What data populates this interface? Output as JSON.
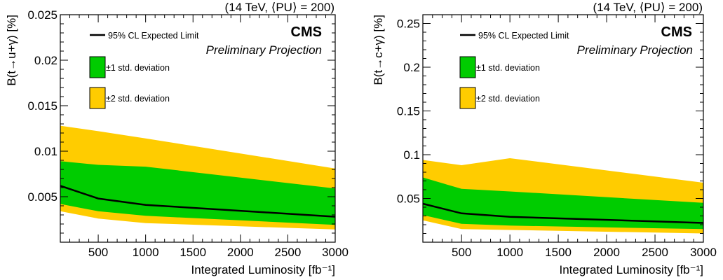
{
  "chart_data": [
    {
      "type": "area",
      "header": "(14 TeV, ⟨PU⟩ = 200)",
      "brand": "CMS",
      "subtitle": "Preliminary Projection",
      "xlabel": "Integrated Luminosity [fb⁻¹]",
      "ylabel": "B(t→u+γ) [%]",
      "xlim": [
        100,
        3000
      ],
      "ylim": [
        0,
        0.025
      ],
      "xticks": [
        500,
        1000,
        1500,
        2000,
        2500,
        3000
      ],
      "xtick_labels": [
        "500",
        "1000",
        "1500",
        "2000",
        "2500",
        "3000"
      ],
      "yticks": [
        0.005,
        0.01,
        0.015,
        0.02,
        0.025
      ],
      "ytick_labels": [
        "0.005",
        "0.01",
        "0.015",
        "0.02",
        "0.025"
      ],
      "x": [
        100,
        500,
        1000,
        3000
      ],
      "series": [
        {
          "name": "95% CL Expected Limit",
          "values": [
            0.0062,
            0.0048,
            0.0041,
            0.0028
          ]
        },
        {
          "name": "±1 std. deviation",
          "lower": [
            0.0042,
            0.0034,
            0.0029,
            0.0019
          ],
          "upper": [
            0.0089,
            0.0085,
            0.0083,
            0.0059
          ]
        },
        {
          "name": "±2 std. deviation",
          "lower": [
            0.0034,
            0.0026,
            0.0021,
            0.0014
          ],
          "upper": [
            0.0128,
            0.0122,
            0.0114,
            0.0081
          ]
        }
      ],
      "colors": {
        "line": "#000000",
        "band1": "#00cc00",
        "band2": "#ffcc00"
      },
      "legend_position": "top-left"
    },
    {
      "type": "area",
      "header": "(14 TeV, ⟨PU⟩ = 200)",
      "brand": "CMS",
      "subtitle": "Preliminary Projection",
      "xlabel": "Integrated Luminosity [fb⁻¹]",
      "ylabel": "B(t→c+γ) [%]",
      "xlim": [
        100,
        3000
      ],
      "ylim": [
        0,
        0.26
      ],
      "xticks": [
        500,
        1000,
        1500,
        2000,
        2500,
        3000
      ],
      "xtick_labels": [
        "500",
        "1000",
        "1500",
        "2000",
        "2500",
        "3000"
      ],
      "yticks": [
        0.05,
        0.1,
        0.15,
        0.2,
        0.25
      ],
      "ytick_labels": [
        "0.05",
        "0.1",
        "0.15",
        "0.2",
        "0.25"
      ],
      "x": [
        100,
        500,
        1000,
        3000
      ],
      "series": [
        {
          "name": "95% CL Expected Limit",
          "values": [
            0.044,
            0.033,
            0.029,
            0.022
          ]
        },
        {
          "name": "±1 std. deviation",
          "lower": [
            0.031,
            0.021,
            0.019,
            0.015
          ],
          "upper": [
            0.074,
            0.061,
            0.058,
            0.045
          ]
        },
        {
          "name": "±2 std. deviation",
          "lower": [
            0.025,
            0.015,
            0.014,
            0.01
          ],
          "upper": [
            0.094,
            0.088,
            0.096,
            0.068
          ]
        }
      ],
      "colors": {
        "line": "#000000",
        "band1": "#00cc00",
        "band2": "#ffcc00"
      },
      "legend_position": "top-left"
    }
  ]
}
